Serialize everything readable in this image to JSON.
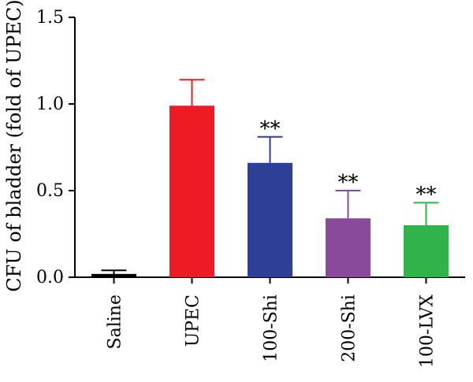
{
  "chart_data": {
    "type": "bar",
    "ylabel": "CFU of bladder (fold of UPEC)",
    "ylim": [
      0,
      1.5
    ],
    "yticks": [
      "0.0",
      "0.5",
      "1.0",
      "1.5"
    ],
    "categories": [
      "Saline",
      "UPEC",
      "100-Shi",
      "200-Shi",
      "100-LVX"
    ],
    "values": [
      0.01,
      0.99,
      0.66,
      0.34,
      0.3
    ],
    "errors": [
      0.03,
      0.15,
      0.15,
      0.16,
      0.13
    ],
    "annotations": [
      "",
      "",
      "**",
      "**",
      "**"
    ],
    "colors": [
      "#000000",
      "#ed1c24",
      "#2e3f97",
      "#8a4a9b",
      "#2fb34a"
    ],
    "grid": false
  }
}
